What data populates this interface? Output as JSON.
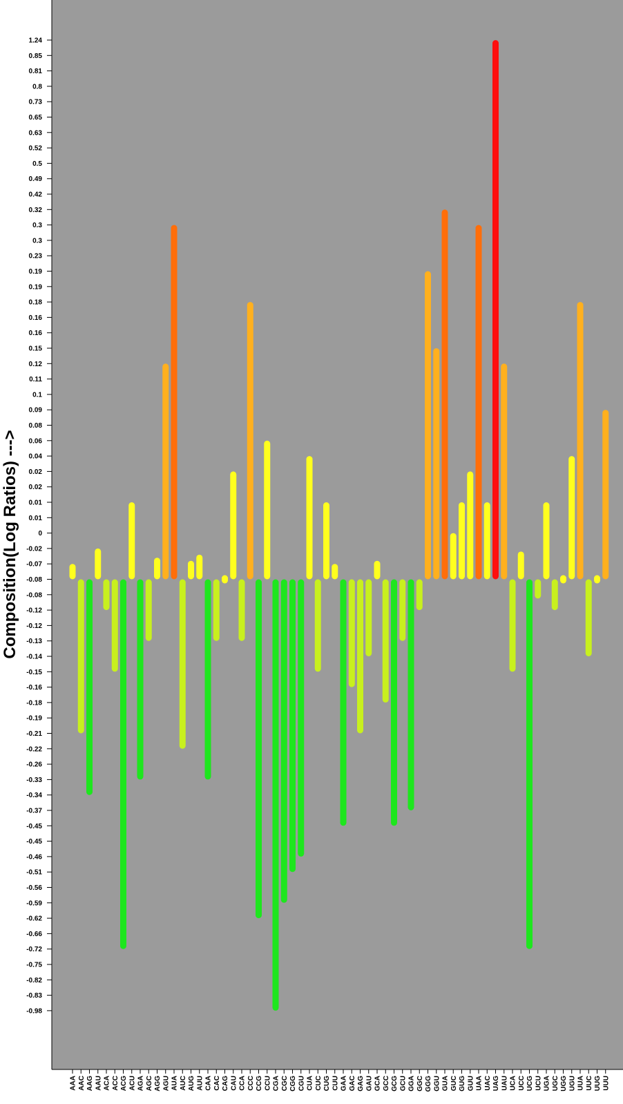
{
  "chart_data": {
    "type": "bar",
    "title": "",
    "xlabel": "",
    "ylabel": "Composition(Log Ratios) --->",
    "y_tick_labels": [
      "1.24",
      "0.85",
      "0.81",
      "0.8",
      "0.73",
      "0.65",
      "0.63",
      "0.52",
      "0.5",
      "0.49",
      "0.42",
      "0.32",
      "0.3",
      "0.3",
      "0.23",
      "0.19",
      "0.19",
      "0.18",
      "0.16",
      "0.16",
      "0.15",
      "0.12",
      "0.11",
      "0.1",
      "0.09",
      "0.08",
      "0.06",
      "0.04",
      "0.02",
      "0.02",
      "0.01",
      "0.01",
      "0",
      "-0.02",
      "-0.07",
      "-0.08",
      "-0.08",
      "-0.12",
      "-0.12",
      "-0.13",
      "-0.14",
      "-0.15",
      "-0.16",
      "-0.18",
      "-0.19",
      "-0.21",
      "-0.22",
      "-0.26",
      "-0.33",
      "-0.34",
      "-0.37",
      "-0.45",
      "-0.45",
      "-0.46",
      "-0.51",
      "-0.56",
      "-0.59",
      "-0.62",
      "-0.66",
      "-0.72",
      "-0.75",
      "-0.82",
      "-0.83",
      "-0.98"
    ],
    "categories": [
      "AAA",
      "AAC",
      "AAG",
      "AAU",
      "ACA",
      "ACC",
      "ACG",
      "ACU",
      "AGA",
      "AGC",
      "AGG",
      "AGU",
      "AUA",
      "AUC",
      "AUG",
      "AUU",
      "CAA",
      "CAC",
      "CAG",
      "CAU",
      "CCA",
      "CCC",
      "CCG",
      "CCU",
      "CGA",
      "CGC",
      "CGG",
      "CGU",
      "CUA",
      "CUC",
      "CUG",
      "CUU",
      "GAA",
      "GAC",
      "GAG",
      "GAU",
      "GCA",
      "GCC",
      "GCG",
      "GCU",
      "GGA",
      "GGC",
      "GGG",
      "GGU",
      "GUA",
      "GUC",
      "GUG",
      "GUU",
      "UAA",
      "UAC",
      "UAG",
      "UAU",
      "UCA",
      "UCC",
      "UCG",
      "UCU",
      "UGA",
      "UGC",
      "UGG",
      "UGU",
      "UUA",
      "UUC",
      "UUG",
      "UUU"
    ],
    "values": [
      -0.07,
      -0.21,
      -0.34,
      -0.02,
      -0.12,
      -0.15,
      -0.72,
      0.01,
      -0.33,
      -0.13,
      -0.05,
      0.12,
      0.3,
      -0.22,
      -0.06,
      -0.04,
      -0.33,
      -0.13,
      -0.08,
      0.02,
      -0.13,
      0.18,
      -0.62,
      0.06,
      -0.98,
      -0.59,
      -0.51,
      -0.46,
      0.04,
      -0.15,
      0.01,
      -0.07,
      -0.45,
      -0.16,
      -0.21,
      -0.14,
      -0.06,
      -0.18,
      -0.45,
      -0.13,
      -0.37,
      -0.12,
      0.19,
      0.15,
      0.32,
      0.0,
      0.01,
      0.02,
      0.3,
      0.01,
      1.24,
      0.12,
      -0.15,
      -0.03,
      -0.72,
      -0.09,
      0.01,
      -0.12,
      -0.08,
      0.04,
      0.18,
      -0.14,
      -0.08,
      0.09
    ],
    "baseline": -0.08,
    "grid": false,
    "legend": "none",
    "colors": {
      "plot_background": "#9b9b9b",
      "strong_negative": "#1ee61e",
      "mild_negative": "#c8f01e",
      "mild_positive": "#ffff1e",
      "positive": "#ffb01e",
      "strong_positive": "#ff6e0a",
      "max": "#ff0f0f"
    }
  }
}
